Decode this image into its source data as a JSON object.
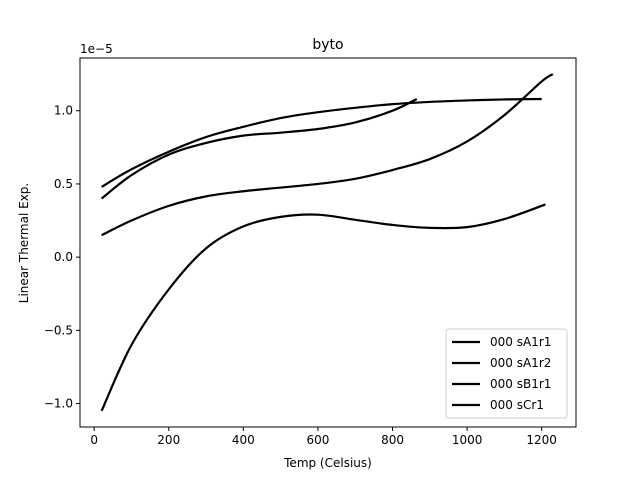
{
  "chart_data": {
    "type": "line",
    "title": "byto",
    "xlabel": "Temp (Celsius)",
    "ylabel": "Linear Thermal Exp.",
    "y_scale_label": "1e−5",
    "y_multiplier": 1e-05,
    "xlim": [
      -38,
      1292
    ],
    "ylim": [
      -1.16,
      1.36
    ],
    "x_ticks": [
      0,
      200,
      400,
      600,
      800,
      1000,
      1200
    ],
    "y_ticks": [
      -1.0,
      -0.5,
      0.0,
      0.5,
      1.0
    ],
    "y_tick_labels": [
      "−1.0",
      "−0.5",
      "0.0",
      "0.5",
      "1.0"
    ],
    "grid": false,
    "legend_position": "lower-right",
    "line_color": "#000000",
    "series": [
      {
        "name": "000 sA1r1",
        "x": [
          20,
          100,
          200,
          300,
          400,
          500,
          600,
          700,
          800,
          900,
          1000,
          1100,
          1200
        ],
        "y": [
          0.48,
          0.6,
          0.72,
          0.82,
          0.89,
          0.95,
          0.99,
          1.02,
          1.045,
          1.06,
          1.07,
          1.077,
          1.08
        ]
      },
      {
        "name": "000 sA1r2",
        "x": [
          20,
          100,
          200,
          300,
          400,
          500,
          600,
          700,
          800,
          865
        ],
        "y": [
          0.4,
          0.56,
          0.7,
          0.78,
          0.83,
          0.85,
          0.875,
          0.92,
          1.0,
          1.08
        ]
      },
      {
        "name": "000 sB1r1",
        "x": [
          20,
          100,
          200,
          300,
          400,
          500,
          600,
          700,
          800,
          900,
          1000,
          1100,
          1200,
          1230
        ],
        "y": [
          0.15,
          0.25,
          0.35,
          0.415,
          0.45,
          0.475,
          0.5,
          0.535,
          0.595,
          0.67,
          0.79,
          0.97,
          1.2,
          1.25
        ]
      },
      {
        "name": "000 sCr1",
        "x": [
          20,
          100,
          200,
          300,
          400,
          500,
          600,
          700,
          800,
          900,
          1000,
          1100,
          1210
        ],
        "y": [
          -1.05,
          -0.6,
          -0.22,
          0.06,
          0.21,
          0.275,
          0.29,
          0.255,
          0.22,
          0.2,
          0.205,
          0.26,
          0.36
        ]
      }
    ]
  }
}
